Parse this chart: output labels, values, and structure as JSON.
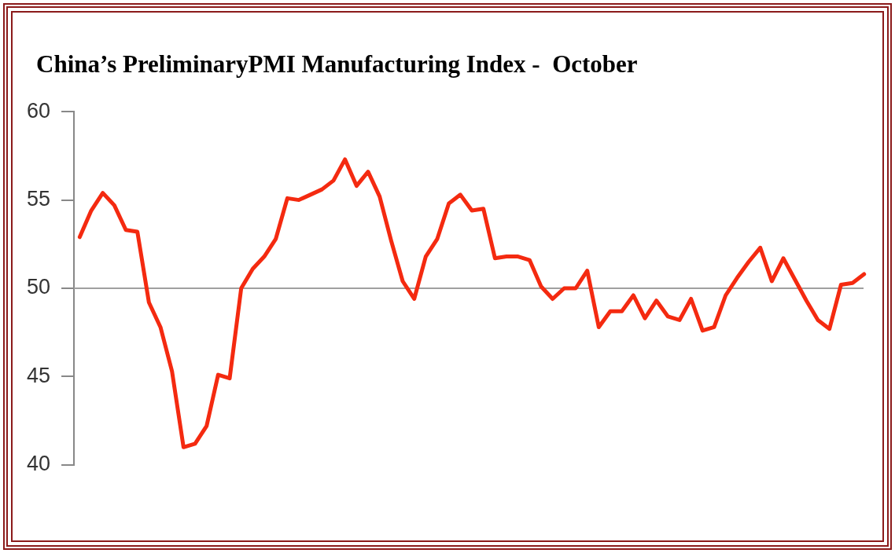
{
  "chart_data": {
    "type": "line",
    "title": "China’s PreliminaryPMI Manufacturing Index -  October",
    "categories": [
      null,
      null,
      null,
      null,
      null,
      null,
      null,
      null,
      null,
      null,
      null,
      null,
      null,
      null,
      null,
      null,
      null,
      null,
      null,
      null,
      null,
      null,
      null,
      null,
      null,
      null,
      null,
      null,
      null,
      null,
      null,
      null,
      null,
      null,
      null,
      null,
      null,
      null,
      null,
      null,
      null,
      null,
      null,
      null,
      null,
      null,
      null,
      null,
      null,
      null,
      null,
      null,
      null,
      null,
      null,
      null,
      null,
      null,
      null,
      null,
      null,
      null,
      null,
      null,
      null,
      null,
      null,
      null,
      null
    ],
    "series": [
      {
        "color": "#f42a10",
        "values": [
          52.9,
          54.4,
          55.4,
          54.7,
          53.3,
          53.2,
          49.2,
          47.8,
          45.3,
          41.0,
          41.2,
          42.2,
          45.1,
          44.9,
          50.0,
          51.1,
          51.8,
          52.8,
          55.1,
          55.0,
          55.3,
          55.6,
          56.1,
          57.3,
          55.8,
          56.6,
          55.2,
          52.7,
          50.4,
          49.4,
          51.8,
          52.8,
          54.8,
          55.3,
          54.4,
          54.5,
          51.7,
          51.8,
          51.8,
          51.6,
          50.1,
          49.4,
          50.0,
          50.0,
          51.0,
          47.8,
          48.7,
          48.7,
          49.6,
          48.3,
          49.3,
          48.4,
          48.2,
          49.4,
          47.6,
          47.8,
          49.6,
          50.6,
          51.5,
          52.3,
          50.4,
          51.7,
          50.5,
          49.3,
          48.2,
          47.7,
          50.2,
          50.3,
          50.8
        ]
      }
    ],
    "ylim": [
      40,
      60
    ],
    "yticks": [
      40,
      45,
      50,
      55,
      60
    ],
    "ref_lines": [
      {
        "axis": "y",
        "value": 50,
        "color": "#a0a0a0"
      }
    ],
    "tick_labels": "y",
    "grid": false,
    "legend": false,
    "marker": "none",
    "line_style": "solid"
  }
}
